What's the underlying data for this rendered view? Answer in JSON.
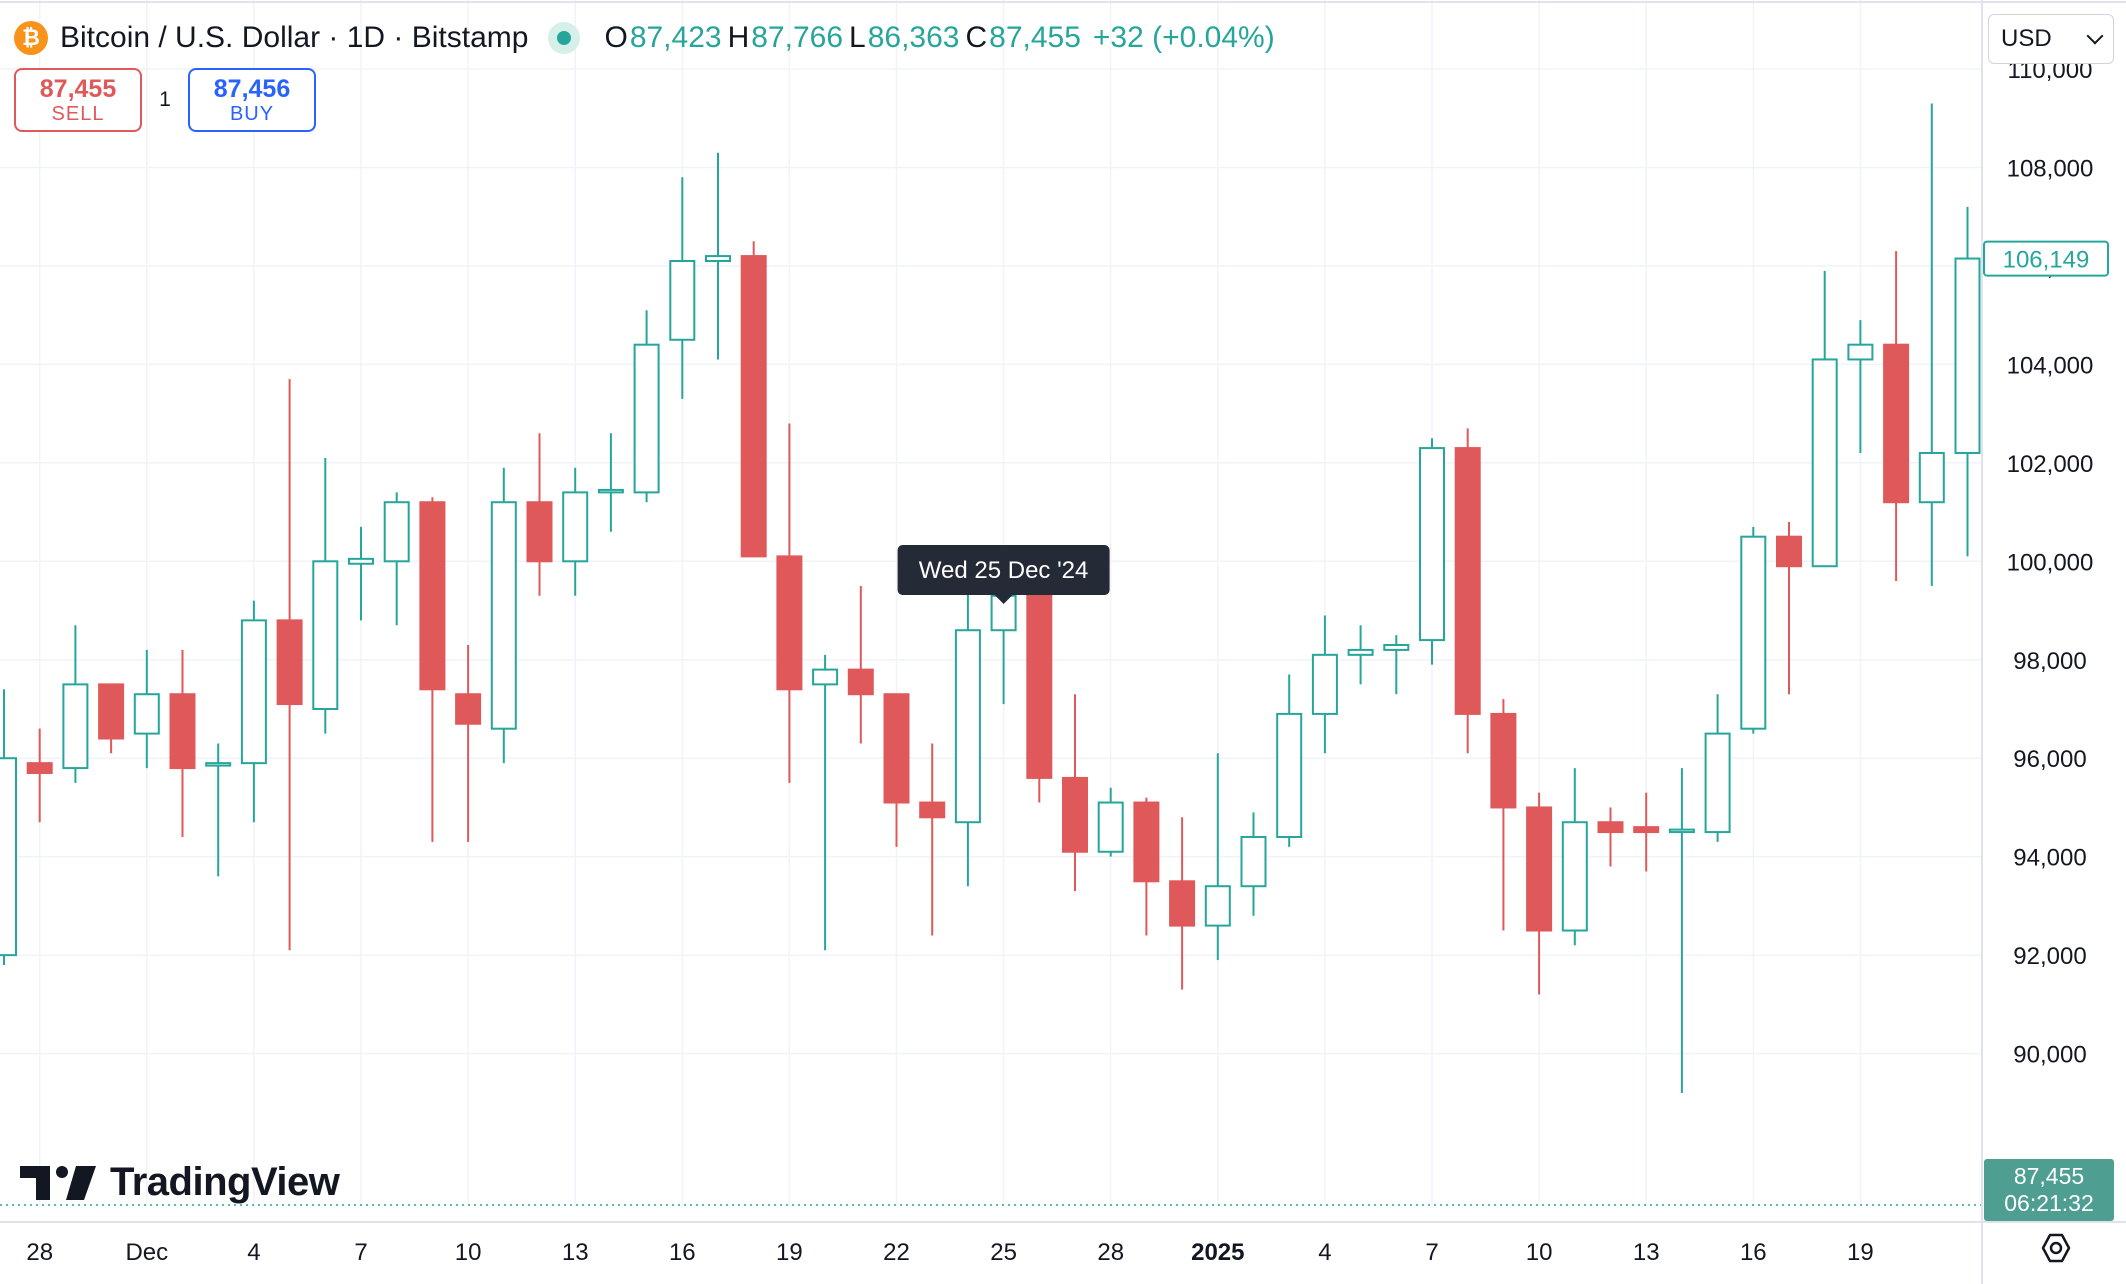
{
  "header": {
    "coin_glyph": "₿",
    "symbol_title": "Bitcoin / U.S. Dollar · 1D · Bitstamp",
    "o_label": "O",
    "o_value": "87,423",
    "h_label": "H",
    "h_value": "87,766",
    "l_label": "L",
    "l_value": "86,363",
    "c_label": "C",
    "c_value": "87,455",
    "change": "+32 (+0.04%)"
  },
  "trade": {
    "sell_price": "87,455",
    "sell_label": "SELL",
    "quantity": "1",
    "buy_price": "87,456",
    "buy_label": "BUY"
  },
  "currency": "USD",
  "logo_text": "TradingView",
  "colors": {
    "up": "#26a69a",
    "down": "#e0595a",
    "grid": "#f0f3fa",
    "tooltip_bg": "#252a37"
  },
  "chart_data": {
    "type": "candlestick",
    "title": "Bitcoin / U.S. Dollar · 1D · Bitstamp",
    "ylim": [
      88000,
      111000
    ],
    "y_ticks": [
      90000,
      92000,
      94000,
      96000,
      98000,
      100000,
      102000,
      104000,
      106000,
      108000,
      110000
    ],
    "y_tick_labels": [
      "90,000",
      "92,000",
      "94,000",
      "96,000",
      "98,000",
      "100,000",
      "102,000",
      "104,000",
      "106,000",
      "108,000",
      "110,000"
    ],
    "x_ticks": [
      {
        "label": "28",
        "index": 1
      },
      {
        "label": "Dec",
        "index": 4
      },
      {
        "label": "4",
        "index": 7
      },
      {
        "label": "7",
        "index": 10
      },
      {
        "label": "10",
        "index": 13
      },
      {
        "label": "13",
        "index": 16
      },
      {
        "label": "16",
        "index": 19
      },
      {
        "label": "19",
        "index": 22
      },
      {
        "label": "22",
        "index": 25
      },
      {
        "label": "25",
        "index": 28
      },
      {
        "label": "28",
        "index": 31
      },
      {
        "label": "2025",
        "index": 34,
        "bold": true
      },
      {
        "label": "4",
        "index": 37
      },
      {
        "label": "7",
        "index": 40
      },
      {
        "label": "10",
        "index": 43
      },
      {
        "label": "13",
        "index": 46
      },
      {
        "label": "16",
        "index": 49
      },
      {
        "label": "19",
        "index": 52
      }
    ],
    "candles": [
      {
        "o": 92000,
        "h": 97400,
        "l": 91800,
        "c": 96000
      },
      {
        "o": 95900,
        "h": 96600,
        "l": 94700,
        "c": 95700
      },
      {
        "o": 95800,
        "h": 98700,
        "l": 95500,
        "c": 97500
      },
      {
        "o": 97500,
        "h": 97500,
        "l": 96100,
        "c": 96400
      },
      {
        "o": 96500,
        "h": 98200,
        "l": 95800,
        "c": 97300
      },
      {
        "o": 97300,
        "h": 98200,
        "l": 94400,
        "c": 95800
      },
      {
        "o": 95850,
        "h": 96300,
        "l": 93600,
        "c": 95900
      },
      {
        "o": 95900,
        "h": 99200,
        "l": 94700,
        "c": 98800
      },
      {
        "o": 98800,
        "h": 103700,
        "l": 92100,
        "c": 97100
      },
      {
        "o": 97000,
        "h": 102100,
        "l": 96500,
        "c": 100000
      },
      {
        "o": 99950,
        "h": 100700,
        "l": 98800,
        "c": 100050
      },
      {
        "o": 100000,
        "h": 101400,
        "l": 98700,
        "c": 101200
      },
      {
        "o": 101200,
        "h": 101300,
        "l": 94300,
        "c": 97400
      },
      {
        "o": 97300,
        "h": 98300,
        "l": 94300,
        "c": 96700
      },
      {
        "o": 96600,
        "h": 101900,
        "l": 95900,
        "c": 101200
      },
      {
        "o": 101200,
        "h": 102600,
        "l": 99300,
        "c": 100000
      },
      {
        "o": 100000,
        "h": 101900,
        "l": 99300,
        "c": 101400
      },
      {
        "o": 101400,
        "h": 102600,
        "l": 100600,
        "c": 101450
      },
      {
        "o": 101400,
        "h": 105100,
        "l": 101200,
        "c": 104400
      },
      {
        "o": 104500,
        "h": 107800,
        "l": 103300,
        "c": 106100
      },
      {
        "o": 106100,
        "h": 108300,
        "l": 104100,
        "c": 106200
      },
      {
        "o": 106200,
        "h": 106500,
        "l": 100100,
        "c": 100100
      },
      {
        "o": 100100,
        "h": 102800,
        "l": 95500,
        "c": 97400
      },
      {
        "o": 97500,
        "h": 98100,
        "l": 92100,
        "c": 97800
      },
      {
        "o": 97800,
        "h": 99500,
        "l": 96300,
        "c": 97300
      },
      {
        "o": 97300,
        "h": 97300,
        "l": 94200,
        "c": 95100
      },
      {
        "o": 95100,
        "h": 96300,
        "l": 92400,
        "c": 94800
      },
      {
        "o": 94700,
        "h": 99400,
        "l": 93400,
        "c": 98600
      },
      {
        "o": 98600,
        "h": 99500,
        "l": 97100,
        "c": 99300
      },
      {
        "o": 99300,
        "h": 99800,
        "l": 95100,
        "c": 95600
      },
      {
        "o": 95600,
        "h": 97300,
        "l": 93300,
        "c": 94100
      },
      {
        "o": 94100,
        "h": 95400,
        "l": 94000,
        "c": 95100
      },
      {
        "o": 95100,
        "h": 95200,
        "l": 92400,
        "c": 93500
      },
      {
        "o": 93500,
        "h": 94800,
        "l": 91300,
        "c": 92600
      },
      {
        "o": 92600,
        "h": 96100,
        "l": 91900,
        "c": 93400
      },
      {
        "o": 93400,
        "h": 94900,
        "l": 92800,
        "c": 94400
      },
      {
        "o": 94400,
        "h": 97700,
        "l": 94200,
        "c": 96900
      },
      {
        "o": 96900,
        "h": 98900,
        "l": 96100,
        "c": 98100
      },
      {
        "o": 98100,
        "h": 98700,
        "l": 97500,
        "c": 98200
      },
      {
        "o": 98200,
        "h": 98500,
        "l": 97300,
        "c": 98300
      },
      {
        "o": 98400,
        "h": 102500,
        "l": 97900,
        "c": 102300
      },
      {
        "o": 102300,
        "h": 102700,
        "l": 96100,
        "c": 96900
      },
      {
        "o": 96900,
        "h": 97200,
        "l": 92500,
        "c": 95000
      },
      {
        "o": 95000,
        "h": 95300,
        "l": 91200,
        "c": 92500
      },
      {
        "o": 92500,
        "h": 95800,
        "l": 92200,
        "c": 94700
      },
      {
        "o": 94700,
        "h": 95000,
        "l": 93800,
        "c": 94500
      },
      {
        "o": 94600,
        "h": 95300,
        "l": 93700,
        "c": 94500
      },
      {
        "o": 94500,
        "h": 95800,
        "l": 89200,
        "c": 94550
      },
      {
        "o": 94500,
        "h": 97300,
        "l": 94300,
        "c": 96500
      },
      {
        "o": 96600,
        "h": 100700,
        "l": 96500,
        "c": 100500
      },
      {
        "o": 100500,
        "h": 100800,
        "l": 97300,
        "c": 99900
      },
      {
        "o": 99900,
        "h": 105900,
        "l": 99900,
        "c": 104100
      },
      {
        "o": 104100,
        "h": 104900,
        "l": 102200,
        "c": 104400
      },
      {
        "o": 104400,
        "h": 106300,
        "l": 99600,
        "c": 101200
      },
      {
        "o": 101200,
        "h": 109300,
        "l": 99500,
        "c": 102200
      },
      {
        "o": 102200,
        "h": 107200,
        "l": 100100,
        "c": 106150
      }
    ],
    "tooltip": {
      "text": "Wed 25 Dec '24",
      "index": 28
    },
    "last_price_label": "106,149",
    "last_price": 106149,
    "current_price_label": "87,455",
    "current_price": 87455,
    "countdown": "06:21:32"
  }
}
